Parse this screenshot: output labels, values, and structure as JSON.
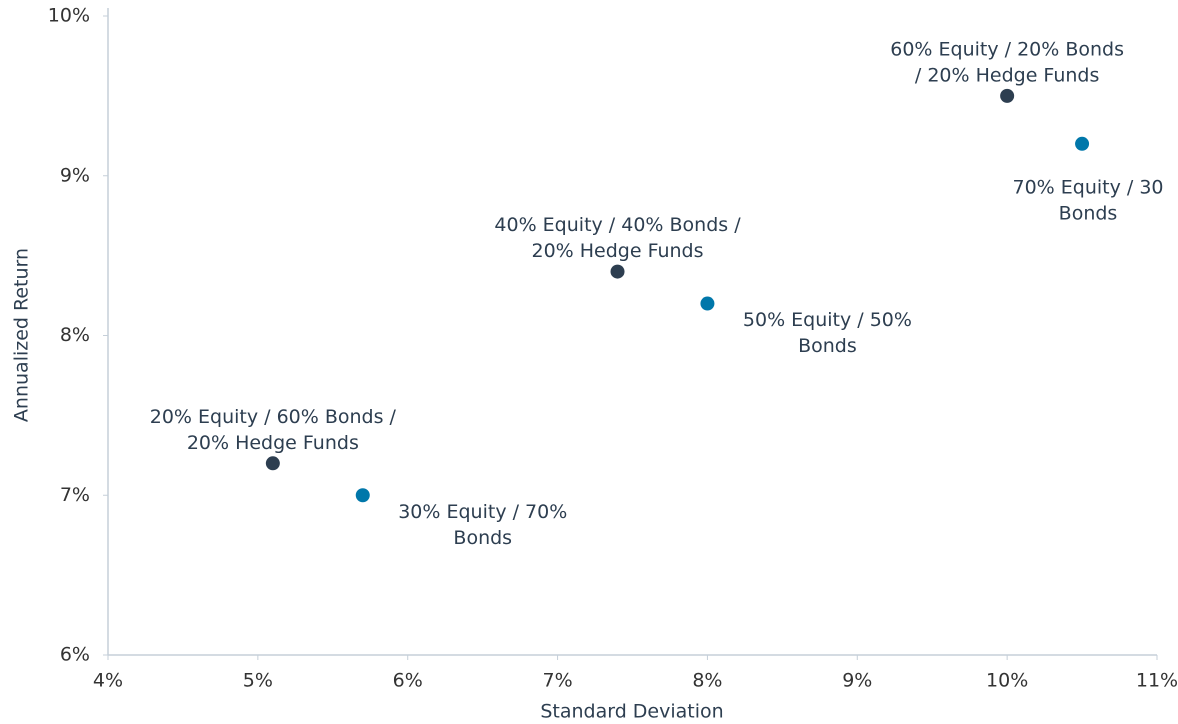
{
  "chart_data": {
    "type": "scatter",
    "xlabel": "Standard Deviation",
    "ylabel": "Annualized Return",
    "xlim": [
      4,
      11
    ],
    "xticks": [
      {
        "value": 4,
        "label": "4%"
      },
      {
        "value": 5,
        "label": "5%"
      },
      {
        "value": 6,
        "label": "6%"
      },
      {
        "value": 7,
        "label": "7%"
      },
      {
        "value": 8,
        "label": "8%"
      },
      {
        "value": 9,
        "label": "9%"
      },
      {
        "value": 10,
        "label": "10%"
      },
      {
        "value": 11,
        "label": "11%"
      }
    ],
    "ylim": [
      6,
      10
    ],
    "yticks": [
      {
        "value": 6,
        "label": "6%"
      },
      {
        "value": 7,
        "label": "7%"
      },
      {
        "value": 8,
        "label": "8%"
      },
      {
        "value": 9,
        "label": "9%"
      },
      {
        "value": 10,
        "label": "10%"
      }
    ],
    "series": [
      {
        "color": "#2d3e50",
        "x": [
          5.1,
          7.4,
          10.0
        ],
        "values": [
          7.2,
          8.4,
          9.5
        ],
        "labels": [
          [
            "20% Equity / 60% Bonds /",
            "20% Hedge Funds"
          ],
          [
            "40% Equity / 40% Bonds /",
            "20% Hedge Funds"
          ],
          [
            "60% Equity / 20% Bonds",
            "/ 20% Hedge Funds"
          ]
        ]
      },
      {
        "color": "#0077aa",
        "x": [
          5.7,
          8.0,
          10.5
        ],
        "values": [
          7.0,
          8.2,
          9.2
        ],
        "labels": [
          [
            "30% Equity / 70%",
            "Bonds"
          ],
          [
            "50% Equity / 50%",
            "Bonds"
          ],
          [
            "70% Equity / 30",
            "Bonds"
          ]
        ]
      }
    ]
  }
}
